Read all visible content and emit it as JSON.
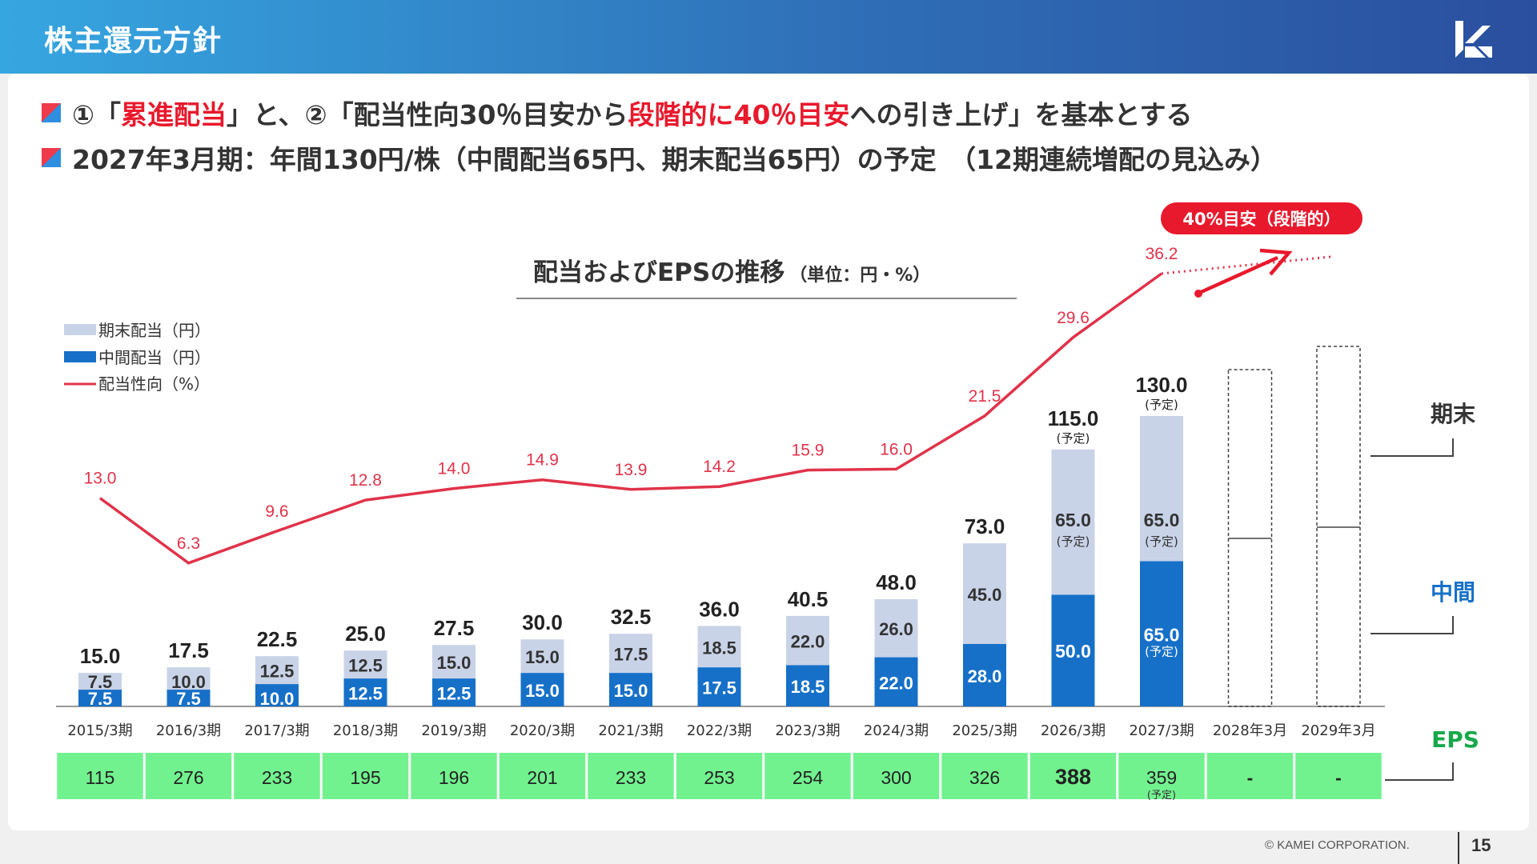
{
  "header": {
    "title": "株主還元方針"
  },
  "bullets": {
    "line1": {
      "p1": "①「",
      "p2": "累進配当",
      "p3": "」と、②「配当性向30％目安から",
      "p4": "段階的に40％目安",
      "p5": "への引き上げ」を基本とする"
    },
    "line2": {
      "text": "2027年3月期：年間130円/株（中間配当65円、期末配当65円）の予定　（12期連続増配の見込み）"
    }
  },
  "chart_data": {
    "type": "bar",
    "title": "配当およびEPSの推移",
    "unit": "（単位：円・%）",
    "categories": [
      "2015/3期",
      "2016/3期",
      "2017/3期",
      "2018/3期",
      "2019/3期",
      "2020/3期",
      "2021/3期",
      "2022/3期",
      "2023/3期",
      "2024/3期",
      "2025/3期",
      "2026/3期",
      "2027/3期",
      "2028年3月",
      "2029年3月"
    ],
    "series": [
      {
        "name": "中間配当（円）",
        "values": [
          7.5,
          7.5,
          10.0,
          12.5,
          12.5,
          15.0,
          15.0,
          17.5,
          18.5,
          22.0,
          28.0,
          50.0,
          65.0,
          null,
          null
        ]
      },
      {
        "name": "期末配当（円）",
        "values": [
          7.5,
          10.0,
          12.5,
          12.5,
          15.0,
          15.0,
          17.5,
          18.5,
          22.0,
          26.0,
          45.0,
          65.0,
          65.0,
          null,
          null
        ]
      },
      {
        "name": "配当性向（%）",
        "values": [
          13.0,
          6.3,
          9.6,
          12.8,
          14.0,
          14.9,
          13.9,
          14.2,
          15.9,
          16.0,
          21.5,
          29.6,
          36.2,
          null,
          null
        ]
      }
    ],
    "totals": [
      15.0,
      17.5,
      22.5,
      25.0,
      27.5,
      30.0,
      32.5,
      36.0,
      40.5,
      48.0,
      73.0,
      115.0,
      130.0,
      null,
      null
    ],
    "eps": [
      "115",
      "276",
      "233",
      "195",
      "196",
      "201",
      "233",
      "253",
      "254",
      "300",
      "326",
      "388",
      "359",
      "-",
      "-"
    ],
    "forecast_note": "(予定)",
    "target_label": "40%目安（段階的）",
    "right_labels": {
      "kimatsu": "期末",
      "chukan": "中間",
      "eps": "EPS"
    },
    "colors": {
      "interim": "#1670c8",
      "final": "#c9d3e8",
      "payout": "#e0334a",
      "eps_bg": "#72f28f",
      "target": "#e8192c"
    }
  },
  "footer": {
    "copyright": "© KAMEI CORPORATION.",
    "page": "15"
  }
}
